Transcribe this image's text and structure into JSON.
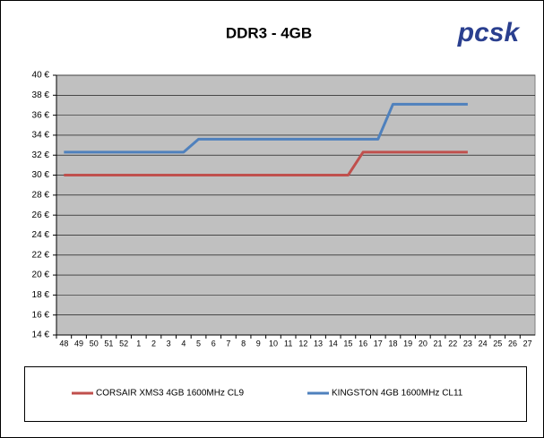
{
  "chart_data": {
    "type": "line",
    "title": "DDR3 - 4GB",
    "logo": "pcsk",
    "categories": [
      "48",
      "49",
      "50",
      "51",
      "52",
      "1",
      "2",
      "3",
      "4",
      "5",
      "6",
      "7",
      "8",
      "9",
      "10",
      "11",
      "12",
      "13",
      "14",
      "15",
      "16",
      "17",
      "18",
      "19",
      "20",
      "21",
      "22",
      "23",
      "24",
      "25",
      "26",
      "27"
    ],
    "series": [
      {
        "name": "CORSAIR XMS3 4GB 1600MHz CL9",
        "color": "#c0504d",
        "values": [
          30,
          30,
          30,
          30,
          30,
          30,
          30,
          30,
          30,
          30,
          30,
          30,
          30,
          30,
          30,
          30,
          30,
          30,
          30,
          30,
          32.3,
          32.3,
          32.3,
          32.3,
          32.3,
          32.3,
          32.3,
          32.3,
          null,
          null,
          null,
          null
        ]
      },
      {
        "name": "KINGSTON 4GB 1600MHz CL11",
        "color": "#4f81bd",
        "values": [
          32.3,
          32.3,
          32.3,
          32.3,
          32.3,
          32.3,
          32.3,
          32.3,
          32.3,
          33.6,
          33.6,
          33.6,
          33.6,
          33.6,
          33.6,
          33.6,
          33.6,
          33.6,
          33.6,
          33.6,
          33.6,
          33.6,
          37.1,
          37.1,
          37.1,
          37.1,
          37.1,
          37.1,
          null,
          null,
          null,
          null
        ]
      }
    ],
    "ylim": [
      14,
      40
    ],
    "yticks": [
      {
        "value": 14,
        "label": "14 €"
      },
      {
        "value": 16,
        "label": "16 €"
      },
      {
        "value": 18,
        "label": "18 €"
      },
      {
        "value": 20,
        "label": "20 €"
      },
      {
        "value": 22,
        "label": "22 €"
      },
      {
        "value": 24,
        "label": "24 €"
      },
      {
        "value": 26,
        "label": "26 €"
      },
      {
        "value": 28,
        "label": "28 €"
      },
      {
        "value": 30,
        "label": "30 €"
      },
      {
        "value": 32,
        "label": "32 €"
      },
      {
        "value": 34,
        "label": "34 €"
      },
      {
        "value": 36,
        "label": "36 €"
      },
      {
        "value": 38,
        "label": "38 €"
      },
      {
        "value": 40,
        "label": "40 €"
      }
    ],
    "grid": true,
    "legend": "bottom",
    "plot_background": "#c0c0c0"
  }
}
